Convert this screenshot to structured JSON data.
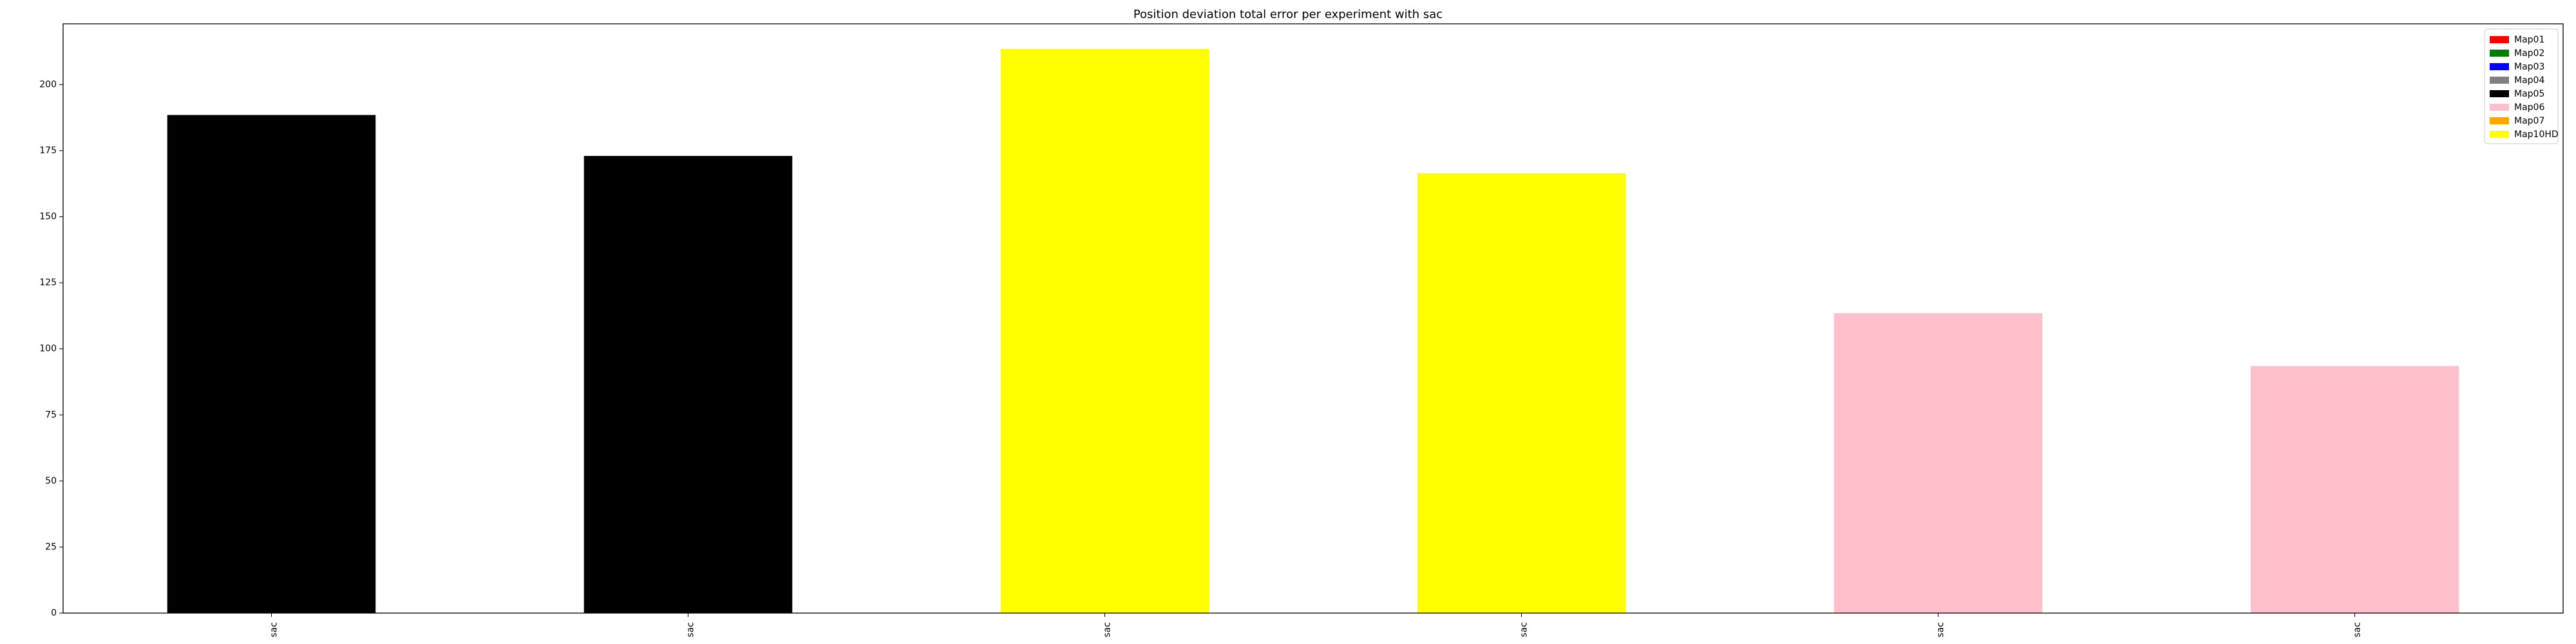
{
  "chart_data": {
    "type": "bar",
    "title": "Position deviation total error per experiment with sac",
    "xlabel": "",
    "ylabel": "",
    "categories": [
      "sac",
      "sac",
      "sac",
      "sac",
      "sac",
      "sac"
    ],
    "values": [
      188.5,
      173,
      213.5,
      166.5,
      113.5,
      93.5
    ],
    "bar_map": [
      "Map05",
      "Map05",
      "Map10HD",
      "Map10HD",
      "Map06",
      "Map06"
    ],
    "ylim": [
      0,
      223
    ],
    "yticks": [
      0,
      25,
      50,
      75,
      100,
      125,
      150,
      175,
      200
    ],
    "grid": false,
    "legend_placement": "top-right",
    "legend": [
      {
        "name": "Map01",
        "color": "#ff0000"
      },
      {
        "name": "Map02",
        "color": "#008000"
      },
      {
        "name": "Map03",
        "color": "#0000ff"
      },
      {
        "name": "Map04",
        "color": "#808080"
      },
      {
        "name": "Map05",
        "color": "#000000"
      },
      {
        "name": "Map06",
        "color": "#ffc0cb"
      },
      {
        "name": "Map07",
        "color": "#ffa500"
      },
      {
        "name": "Map10HD",
        "color": "#ffff00"
      }
    ]
  }
}
